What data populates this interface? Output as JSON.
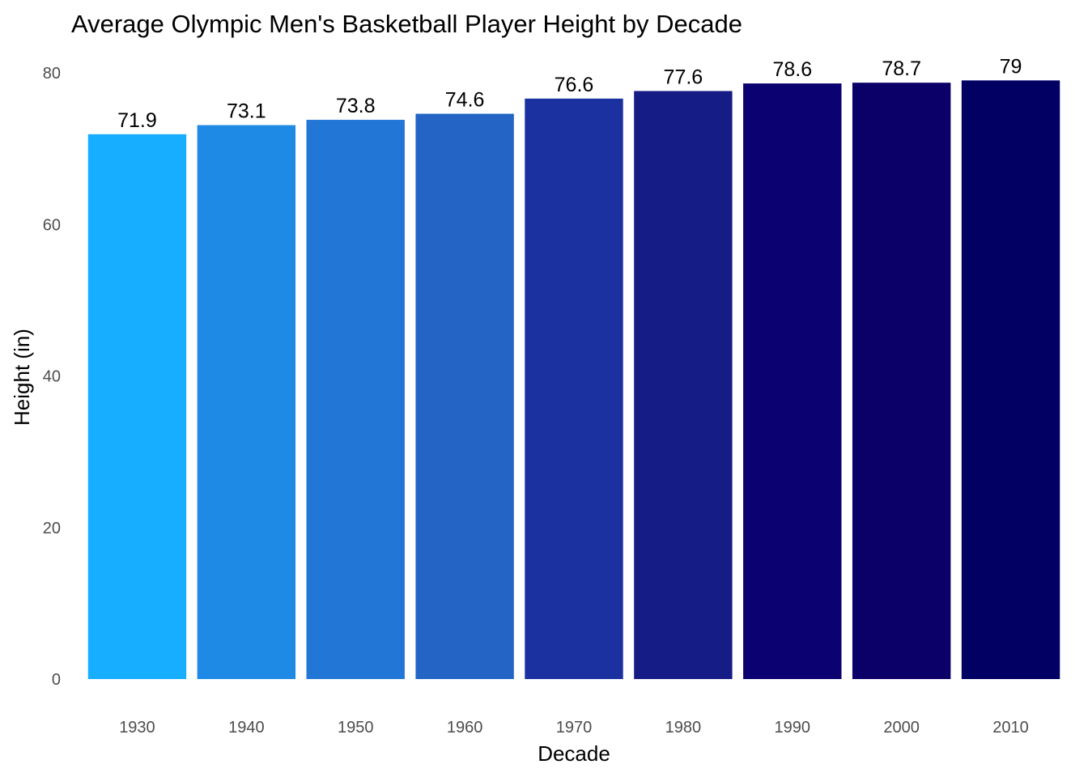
{
  "chart_data": {
    "type": "bar",
    "title": "Average Olympic Men's Basketball Player Height by Decade",
    "xlabel": "Decade",
    "ylabel": "Height (in)",
    "categories": [
      "1930",
      "1940",
      "1950",
      "1960",
      "1970",
      "1980",
      "1990",
      "2000",
      "2010"
    ],
    "values": [
      71.9,
      73.1,
      73.8,
      74.6,
      76.6,
      77.6,
      78.6,
      78.7,
      79
    ],
    "data_labels": [
      "71.9",
      "73.1",
      "73.8",
      "74.6",
      "76.6",
      "77.6",
      "78.6",
      "78.7",
      "79"
    ],
    "ylim": [
      0,
      80
    ],
    "yticks": [
      "0",
      "20",
      "40",
      "60",
      "80"
    ],
    "colors": [
      "#17aeff",
      "#1e8ae6",
      "#2276d6",
      "#2364c4",
      "#1c31a0",
      "#161c85",
      "#0c0170",
      "#0b0068",
      "#020063"
    ],
    "grid": false,
    "legend": "none"
  }
}
